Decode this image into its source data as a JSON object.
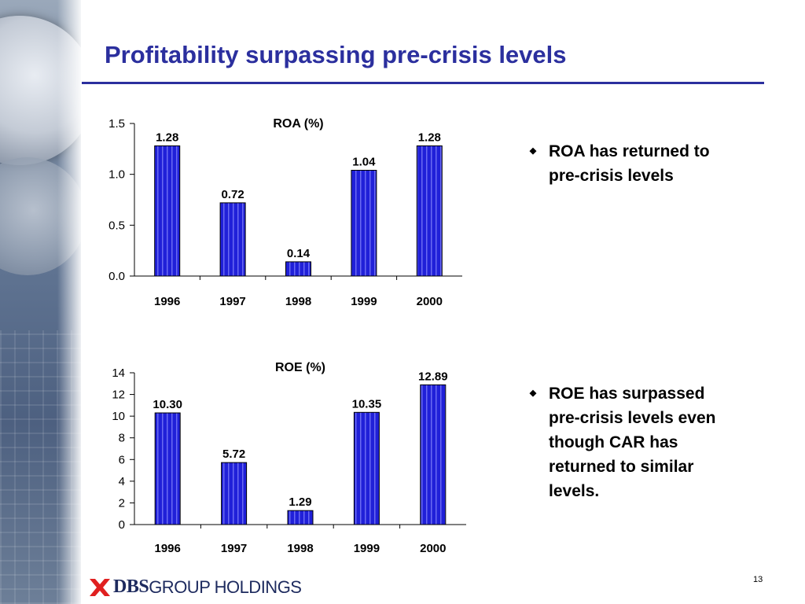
{
  "slide": {
    "title": "Profitability surpassing pre-crisis levels",
    "page_number": "13",
    "logo_text_bold": "DBS",
    "logo_text_regular": "GROUP HOLDINGS"
  },
  "bullets": [
    {
      "text_lines": [
        "ROA has returned to",
        "pre-crisis levels"
      ]
    },
    {
      "text_lines": [
        "ROE has surpassed",
        "pre-crisis levels even",
        "though CAR has",
        "returned to similar",
        "levels."
      ]
    }
  ],
  "colors": {
    "title": "#2b2f9e",
    "bar_fill": "#2020d8",
    "bar_stripe": "#6a6af2",
    "logo_red": "#e02020"
  },
  "chart_data": [
    {
      "type": "bar",
      "title": "ROA (%)",
      "categories": [
        "1996",
        "1997",
        "1998",
        "1999",
        "2000"
      ],
      "values": [
        1.28,
        0.72,
        0.14,
        1.04,
        1.28
      ],
      "value_labels": [
        "1.28",
        "0.72",
        "0.14",
        "1.04",
        "1.28"
      ],
      "ylim": [
        0,
        1.5
      ],
      "yticks": [
        0.0,
        0.5,
        1.0,
        1.5
      ],
      "ytick_labels": [
        "0.0",
        "0.5",
        "1.0",
        "1.5"
      ],
      "grid": false
    },
    {
      "type": "bar",
      "title": "ROE (%)",
      "categories": [
        "1996",
        "1997",
        "1998",
        "1999",
        "2000"
      ],
      "values": [
        10.3,
        5.72,
        1.29,
        10.35,
        12.89
      ],
      "value_labels": [
        "10.30",
        "5.72",
        "1.29",
        "10.35",
        "12.89"
      ],
      "ylim": [
        0,
        14
      ],
      "yticks": [
        0,
        2,
        4,
        6,
        8,
        10,
        12,
        14
      ],
      "ytick_labels": [
        "0",
        "2",
        "4",
        "6",
        "8",
        "10",
        "12",
        "14"
      ],
      "grid": false
    }
  ]
}
